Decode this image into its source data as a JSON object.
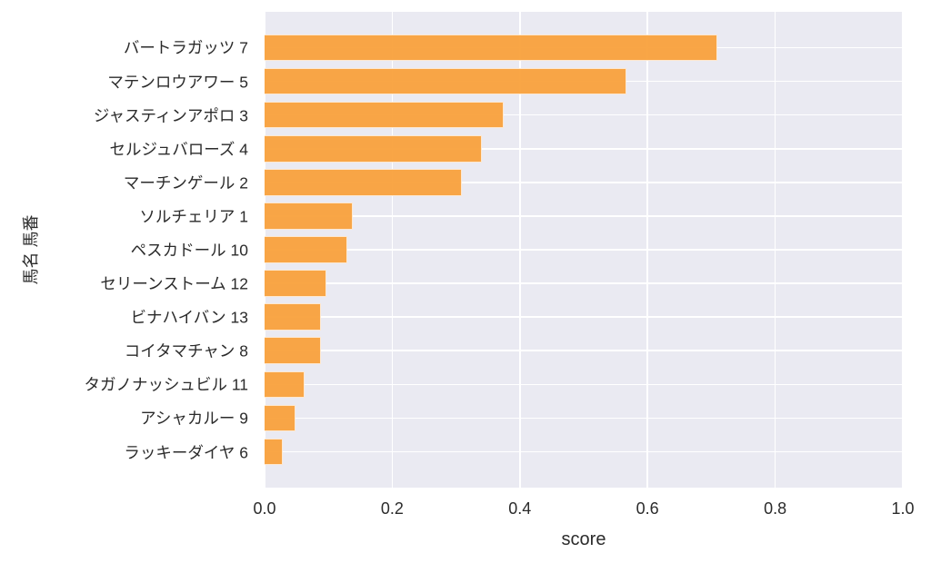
{
  "chart_data": {
    "type": "bar",
    "orientation": "horizontal",
    "title": "",
    "xlabel": "score",
    "ylabel": "馬名 馬番",
    "xlim": [
      0.0,
      1.0
    ],
    "xticks": [
      0.0,
      0.2,
      0.4,
      0.6,
      0.8,
      1.0
    ],
    "xtick_labels": [
      "0.0",
      "0.2",
      "0.4",
      "0.6",
      "0.8",
      "1.0"
    ],
    "grid": true,
    "legend": false,
    "categories": [
      "バートラガッツ 7",
      "マテンロウアワー 5",
      "ジャスティンアポロ 3",
      "セルジュバローズ 4",
      "マーチンゲール 2",
      "ソルチェリア 1",
      "ペスカドール 10",
      "セリーンストーム 12",
      "ビナハイバン 13",
      "コイタマチャン 8",
      "タガノナッシュビル 11",
      "アシャカルー 9",
      "ラッキーダイヤ 6"
    ],
    "values": [
      0.71,
      0.567,
      0.374,
      0.34,
      0.309,
      0.138,
      0.13,
      0.097,
      0.089,
      0.089,
      0.063,
      0.048,
      0.028
    ],
    "bar_color": "#f9a03a",
    "plot_background": "#eaeaf2",
    "grid_color": "#ffffff",
    "text_color": "#2b2b2b"
  }
}
